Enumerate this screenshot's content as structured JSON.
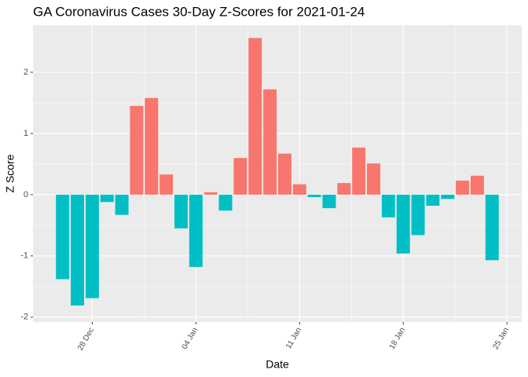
{
  "chart_data": {
    "type": "bar",
    "title": "GA Coronavirus Cases 30-Day Z-Scores for 2021-01-24",
    "x_label": "Date",
    "y_label": "Z Score",
    "x": [
      "26 Dec",
      "27 Dec",
      "28 Dec",
      "29 Dec",
      "30 Dec",
      "31 Dec",
      "01 Jan",
      "02 Jan",
      "03 Jan",
      "04 Jan",
      "05 Jan",
      "06 Jan",
      "07 Jan",
      "08 Jan",
      "09 Jan",
      "10 Jan",
      "11 Jan",
      "12 Jan",
      "13 Jan",
      "14 Jan",
      "15 Jan",
      "16 Jan",
      "17 Jan",
      "18 Jan",
      "19 Jan",
      "20 Jan",
      "21 Jan",
      "22 Jan",
      "23 Jan",
      "24 Jan"
    ],
    "values": [
      -1.38,
      -1.81,
      -1.69,
      -0.12,
      -0.33,
      1.45,
      1.58,
      0.33,
      -0.55,
      -1.18,
      0.04,
      -0.26,
      0.6,
      2.56,
      1.72,
      0.67,
      0.17,
      -0.04,
      -0.22,
      0.19,
      0.77,
      0.51,
      -0.37,
      -0.96,
      -0.66,
      -0.18,
      -0.07,
      0.23,
      0.31,
      -1.07
    ],
    "positive_color": "#F8766D",
    "negative_color": "#00BFC4",
    "xlim": [
      "24 Dec",
      "26 Jan"
    ],
    "xticks": [
      "28 Dec",
      "04 Jan",
      "11 Jan",
      "18 Jan",
      "25 Jan"
    ],
    "ylim": [
      -2.08,
      2.77
    ],
    "yticks": [
      -2,
      -1,
      0,
      1,
      2
    ],
    "grid": true
  }
}
